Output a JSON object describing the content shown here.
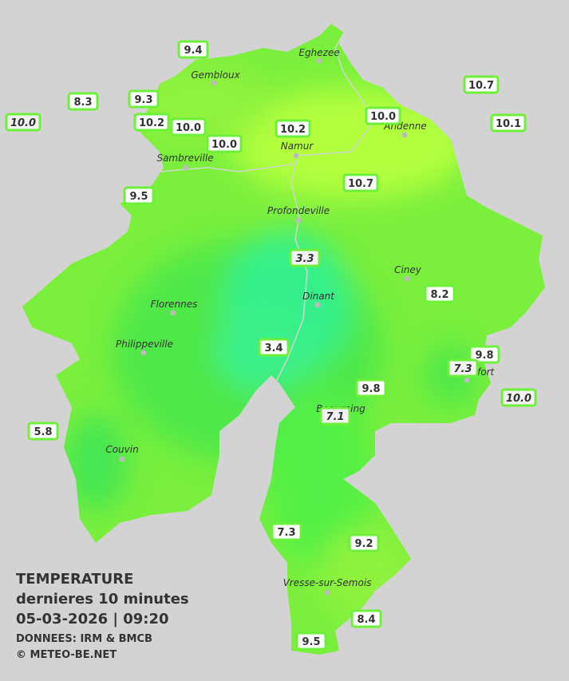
{
  "title": {
    "heading": "TEMPERATURE",
    "subheading": "dernieres 10 minutes",
    "datetime": "05-03-2026  |  09:20",
    "source": "DONNEES: IRM & BMCB",
    "copyright": "© METEO-BE.NET"
  },
  "cities": [
    "Eghezee",
    "Gembloux",
    "Andenne",
    "Namur",
    "Sambreville",
    "Profondeville",
    "Ciney",
    "Dinant",
    "Florennes",
    "Philippeville",
    "Rochefort",
    "Beauraing",
    "Couvin",
    "Vresse-sur-Semois"
  ],
  "stations": [
    {
      "label": "9.4",
      "italic": false
    },
    {
      "label": "8.3",
      "italic": false
    },
    {
      "label": "9.3",
      "italic": false
    },
    {
      "label": "10.0",
      "italic": true
    },
    {
      "label": "10.2",
      "italic": false
    },
    {
      "label": "10.0",
      "italic": false
    },
    {
      "label": "10.0",
      "italic": false
    },
    {
      "label": "10.2",
      "italic": false
    },
    {
      "label": "10.0",
      "italic": false
    },
    {
      "label": "10.7",
      "italic": false
    },
    {
      "label": "10.1",
      "italic": false
    },
    {
      "label": "9.5",
      "italic": false
    },
    {
      "label": "10.7",
      "italic": false
    },
    {
      "label": "3.3",
      "italic": true
    },
    {
      "label": "8.2",
      "italic": false
    },
    {
      "label": "3.4",
      "italic": false
    },
    {
      "label": "9.8",
      "italic": false
    },
    {
      "label": "7.3",
      "italic": true
    },
    {
      "label": "9.8",
      "italic": false
    },
    {
      "label": "10.0",
      "italic": true
    },
    {
      "label": "7.1",
      "italic": true
    },
    {
      "label": "5.8",
      "italic": false
    },
    {
      "label": "7.3",
      "italic": false
    },
    {
      "label": "9.2",
      "italic": false
    },
    {
      "label": "8.4",
      "italic": false
    },
    {
      "label": "9.5",
      "italic": false
    }
  ]
}
